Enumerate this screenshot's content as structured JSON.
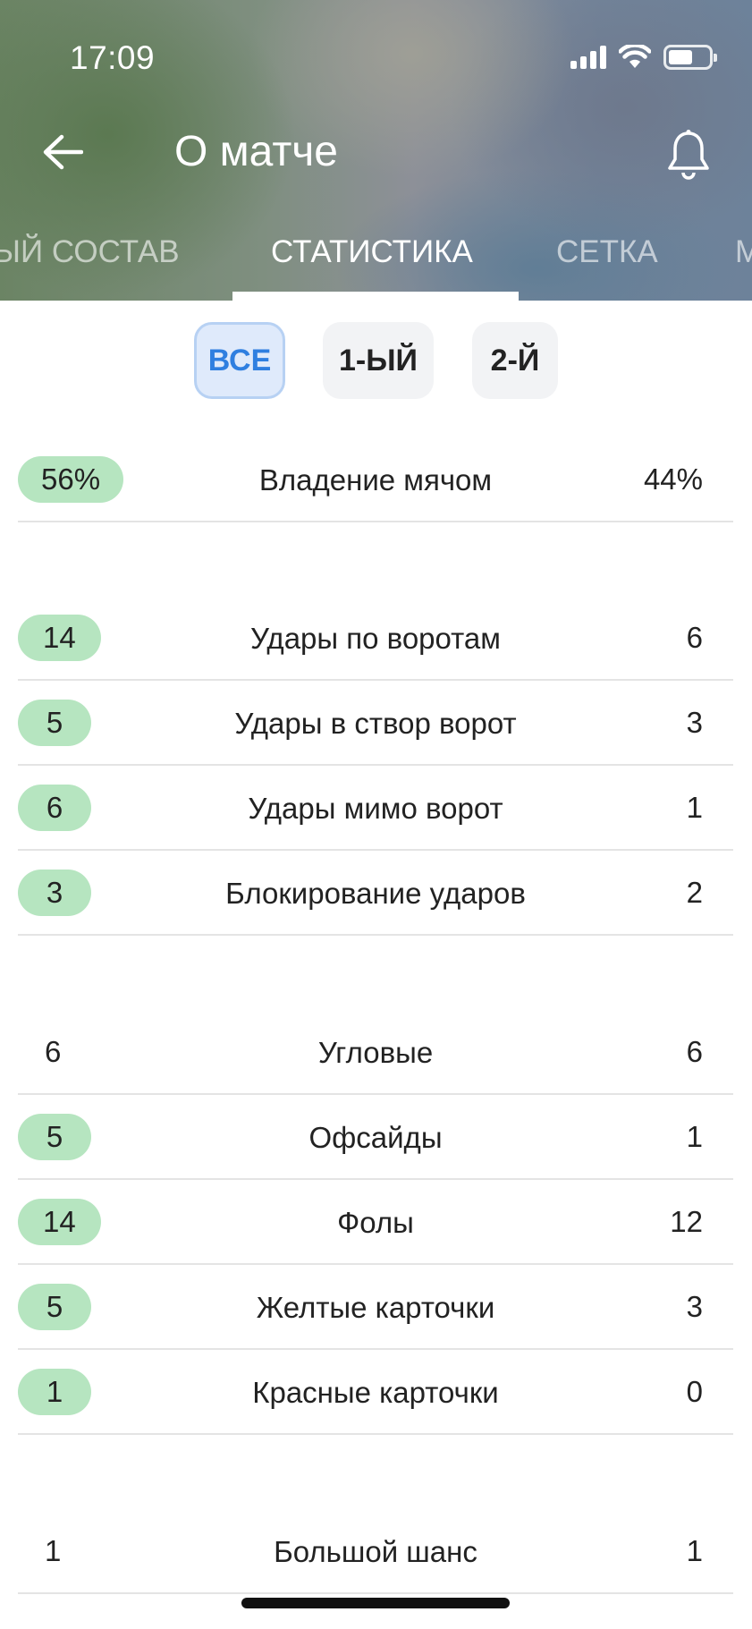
{
  "status_bar": {
    "time": "17:09"
  },
  "header": {
    "title": "О матче",
    "tabs": [
      {
        "label": "ЫЙ СОСТАВ"
      },
      {
        "label": "СТАТИСТИКА",
        "active": true
      },
      {
        "label": "СЕТКА"
      },
      {
        "label": "М"
      }
    ]
  },
  "filters": [
    {
      "label": "ВСЕ",
      "active": true
    },
    {
      "label": "1-ЫЙ"
    },
    {
      "label": "2-Й"
    }
  ],
  "stats": [
    {
      "label": "Владение мячом",
      "left": "56%",
      "right": "44%",
      "left_highlight": true
    },
    {
      "label": "Удары по воротам",
      "left": "14",
      "right": "6",
      "left_highlight": true
    },
    {
      "label": "Удары в створ ворот",
      "left": "5",
      "right": "3",
      "left_highlight": true
    },
    {
      "label": "Удары мимо ворот",
      "left": "6",
      "right": "1",
      "left_highlight": true
    },
    {
      "label": "Блокирование ударов",
      "left": "3",
      "right": "2",
      "left_highlight": true
    },
    {
      "label": "Угловые",
      "left": "6",
      "right": "6",
      "left_highlight": false
    },
    {
      "label": "Офсайды",
      "left": "5",
      "right": "1",
      "left_highlight": true
    },
    {
      "label": "Фолы",
      "left": "14",
      "right": "12",
      "left_highlight": true
    },
    {
      "label": "Желтые карточки",
      "left": "5",
      "right": "3",
      "left_highlight": true
    },
    {
      "label": "Красные карточки",
      "left": "1",
      "right": "0",
      "left_highlight": true
    },
    {
      "label": "Большой шанс",
      "left": "1",
      "right": "1",
      "left_highlight": false
    }
  ],
  "colors": {
    "highlight": "#b6e5c0",
    "active_chip_bg": "#dfeafb",
    "active_chip_text": "#2f7fe0"
  }
}
